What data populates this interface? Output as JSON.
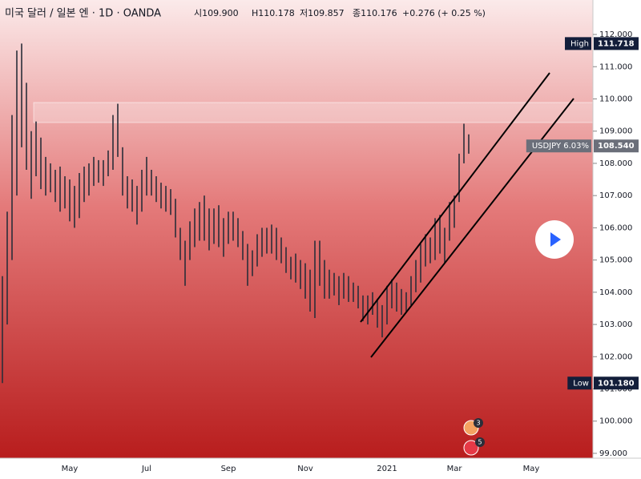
{
  "chart_data": {
    "type": "ohlc",
    "title": "미국 달러 / 일본 엔 · 1D · OANDA",
    "quote": [
      "시109.900",
      "H110.178",
      "저109.857",
      "종110.176",
      "+0.276 (+ 0.25 %)"
    ],
    "categories": [
      null,
      null,
      null,
      null,
      null,
      null,
      null,
      null,
      null,
      null,
      null,
      null,
      null,
      null,
      "May",
      null,
      null,
      null,
      null,
      null,
      null,
      null,
      null,
      null,
      null,
      null,
      null,
      null,
      null,
      null,
      "Jul",
      null,
      null,
      null,
      null,
      null,
      null,
      null,
      null,
      null,
      null,
      null,
      null,
      null,
      null,
      null,
      null,
      "Sep",
      null,
      null,
      null,
      null,
      null,
      null,
      null,
      null,
      null,
      null,
      null,
      null,
      null,
      null,
      null,
      "Nov",
      null,
      null,
      null,
      null,
      null,
      null,
      null,
      null,
      null,
      null,
      null,
      null,
      null,
      null,
      null,
      null,
      "2021",
      null,
      null,
      null,
      null,
      null,
      null,
      null,
      null,
      null,
      null,
      null,
      null,
      null,
      "Mar",
      null,
      null,
      null,
      null,
      null,
      null,
      null,
      null,
      null,
      null,
      null,
      null,
      null,
      null,
      null,
      "May",
      null,
      null,
      null,
      null,
      null,
      null,
      null,
      null,
      null,
      null,
      null,
      null
    ],
    "high": [
      104.5,
      106.5,
      109.5,
      111.5,
      111.718,
      110.5,
      109,
      109.3,
      108.8,
      108.2,
      108,
      107.8,
      107.9,
      107.6,
      107.5,
      107.3,
      107.7,
      107.9,
      108,
      108.2,
      108.1,
      108.1,
      108.4,
      109.5,
      109.85,
      108.5,
      107.6,
      107.5,
      107.3,
      107.8,
      108.2,
      107.8,
      107.6,
      107.4,
      107.3,
      107.2,
      106.9,
      106,
      105.6,
      106.2,
      106.6,
      106.8,
      107,
      106.6,
      106.6,
      106.7,
      106.3,
      106.5,
      106.5,
      106.3,
      105.9,
      105.5,
      105.3,
      105.8,
      106,
      106,
      106.1,
      106,
      105.7,
      105.4,
      105.1,
      105.2,
      105,
      104.9,
      104.7,
      105.6,
      105.6,
      105,
      104.7,
      104.6,
      104.5,
      104.6,
      104.5,
      104.3,
      104.2,
      103.9,
      103.9,
      104,
      103.8,
      103.6,
      104.2,
      104.4,
      104.3,
      104.1,
      104,
      104.5,
      105,
      105.5,
      105.8,
      105.7,
      106.3,
      106.4,
      106,
      106.8,
      107,
      108.3,
      109.23,
      108.9,
      null,
      null,
      null,
      null,
      null,
      null,
      null,
      null,
      null,
      null,
      null,
      null,
      null,
      null,
      null,
      null,
      null,
      null,
      null,
      null,
      null,
      null,
      null,
      null,
      null
    ],
    "low": [
      101.18,
      103,
      105,
      107,
      108.5,
      107.8,
      106.9,
      107.6,
      107.2,
      107,
      107.1,
      106.8,
      106.5,
      106.6,
      106.2,
      106,
      106.3,
      106.8,
      107,
      107.3,
      107.4,
      107.3,
      107.6,
      107.8,
      108.2,
      107,
      106.6,
      106.5,
      106.1,
      106.5,
      107,
      107,
      106.8,
      106.6,
      106.5,
      106.4,
      105.7,
      105,
      104.2,
      105,
      105.4,
      105.6,
      105.6,
      105.3,
      105.5,
      105.4,
      105.1,
      105.5,
      105.6,
      105.4,
      105,
      104.2,
      104.5,
      104.8,
      105.1,
      105.2,
      105.2,
      105,
      104.9,
      104.6,
      104.4,
      104.3,
      104.1,
      103.8,
      103.4,
      103.2,
      104.2,
      103.8,
      103.8,
      103.9,
      103.6,
      103.8,
      103.7,
      103.7,
      103.5,
      103.1,
      103,
      103.3,
      102.9,
      102.6,
      103,
      103.5,
      103.4,
      103.3,
      103.4,
      103.6,
      104,
      104.3,
      104.8,
      104.9,
      105,
      105.2,
      104.9,
      105.6,
      106,
      106.8,
      108,
      108.3,
      null,
      null,
      null,
      null,
      null,
      null,
      null,
      null,
      null,
      null,
      null,
      null,
      null,
      null,
      null,
      null,
      null,
      null,
      null,
      null,
      null,
      null,
      null,
      null,
      null
    ],
    "color": "#2a2e39",
    "ylim": [
      98.85,
      113.07
    ],
    "yticks": [
      {
        "value": 99,
        "label": "99.000"
      },
      {
        "value": 100,
        "label": "100.000"
      },
      {
        "value": 101,
        "label": "101.000"
      },
      {
        "value": 102,
        "label": "102.000"
      },
      {
        "value": 103,
        "label": "103.000"
      },
      {
        "value": 104,
        "label": "104.000"
      },
      {
        "value": 105,
        "label": "105.000"
      },
      {
        "value": 106,
        "label": "106.000"
      },
      {
        "value": 107,
        "label": "107.000"
      },
      {
        "value": 108,
        "label": "108.000"
      },
      {
        "value": 109,
        "label": "109.000"
      },
      {
        "value": 110,
        "label": "110.000"
      },
      {
        "value": 111,
        "label": "111.000"
      },
      {
        "value": 112,
        "label": "112.000"
      }
    ],
    "price_tags": [
      {
        "name": "High",
        "value": 111.718,
        "color": "#131e3a"
      },
      {
        "name": "USDJPY 6.03%",
        "value": {
          "value": 108.54,
          "label": "108.540"
        },
        "color": "#6b6f7a"
      },
      {
        "name": "Low",
        "value": {
          "value": 101.18,
          "label": "101.180"
        },
        "color": "#131e3a"
      }
    ],
    "events": [
      "3",
      "5"
    ]
  }
}
